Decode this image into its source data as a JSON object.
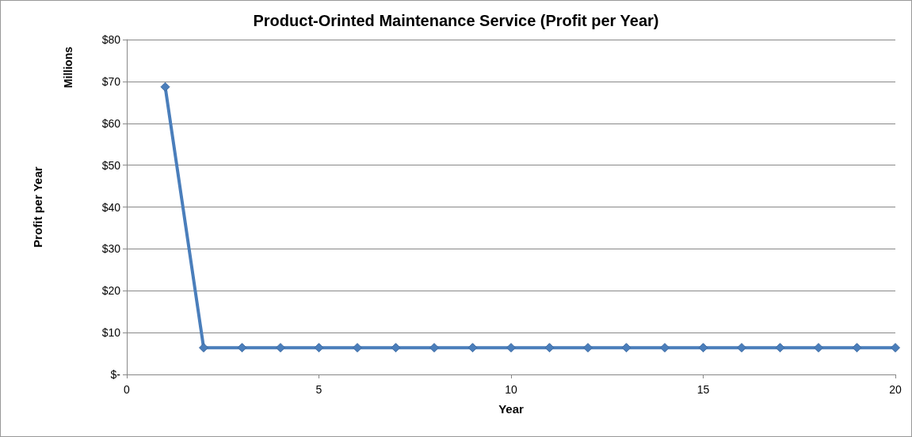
{
  "chart_data": {
    "type": "line",
    "title": "Product-Orinted Maintenance Service (Profit per Year)",
    "xlabel": "Year",
    "ylabel": "Profit per Year",
    "annotations": [
      "Millions"
    ],
    "x": [
      1,
      2,
      3,
      4,
      5,
      6,
      7,
      8,
      9,
      10,
      11,
      12,
      13,
      14,
      15,
      16,
      17,
      18,
      19,
      20
    ],
    "series": [
      {
        "color": "#4a7ebb",
        "values": [
          68.7,
          6.4,
          6.4,
          6.4,
          6.4,
          6.4,
          6.4,
          6.4,
          6.4,
          6.4,
          6.4,
          6.4,
          6.4,
          6.4,
          6.4,
          6.4,
          6.4,
          6.4,
          6.4,
          6.4
        ]
      }
    ],
    "xlim": [
      0,
      20
    ],
    "xticks": [
      0,
      5,
      10,
      15,
      20
    ],
    "ylim": [
      0,
      80
    ],
    "yticks": [
      {
        "value": 0,
        "label": "$-"
      },
      {
        "value": 10,
        "label": "$10"
      },
      {
        "value": 20,
        "label": "$20"
      },
      {
        "value": 30,
        "label": "$30"
      },
      {
        "value": 40,
        "label": "$40"
      },
      {
        "value": 50,
        "label": "$50"
      },
      {
        "value": 60,
        "label": "$60"
      },
      {
        "value": 70,
        "label": "$70"
      },
      {
        "value": 80,
        "label": "$80"
      }
    ],
    "grid": "y",
    "marker": "diamond",
    "line_style": "solid"
  }
}
